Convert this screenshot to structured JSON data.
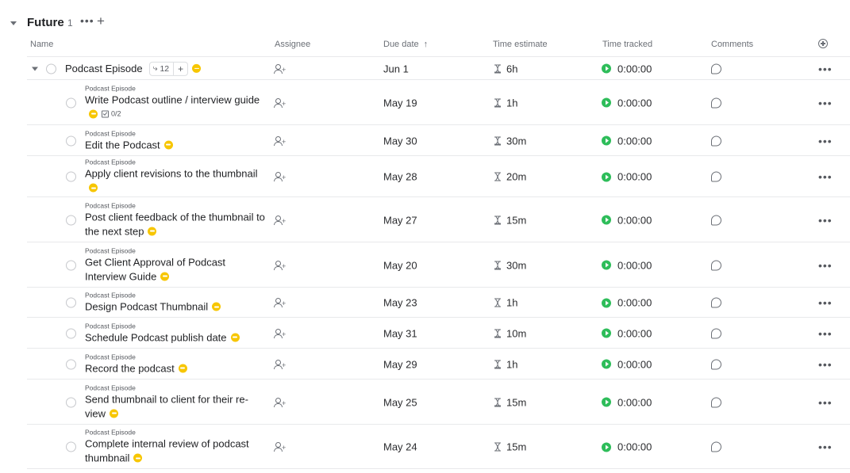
{
  "group": {
    "title": "Future",
    "count": "1",
    "more_icon": "more-horizontal-icon",
    "add_icon": "plus-icon",
    "caret_icon": "caret-down-icon"
  },
  "columns": {
    "name": "Name",
    "assignee": "Assignee",
    "due_date": "Due date",
    "sort_icon": "arrow-up-icon",
    "time_estimate": "Time estimate",
    "time_tracked": "Time tracked",
    "comments": "Comments",
    "add_column_icon": "plus-circle-icon"
  },
  "parent_task": {
    "title": "Podcast Episode",
    "subtask_count": "12",
    "due": "Jun 1",
    "estimate": "6h",
    "tracked": "0:00:00",
    "priority_color": "#f7c600"
  },
  "subtasks": [
    {
      "parent": "Podcast Episode",
      "title": "Write Podcast outline / interview guide",
      "checklist": "0/2",
      "due": "May 19",
      "estimate": "1h",
      "tracked": "0:00:00"
    },
    {
      "parent": "Podcast Episode",
      "title": "Edit the Podcast",
      "due": "May 30",
      "estimate": "30m",
      "tracked": "0:00:00"
    },
    {
      "parent": "Podcast Episode",
      "title": "Apply client revisions to the thumbnail",
      "due": "May 28",
      "estimate": "20m",
      "tracked": "0:00:00"
    },
    {
      "parent": "Podcast Episode",
      "title": "Post client feedback of the thumbnail to the next step",
      "due": "May 27",
      "estimate": "15m",
      "tracked": "0:00:00"
    },
    {
      "parent": "Podcast Episode",
      "title": "Get Client Approval of Podcast Interview Guide",
      "due": "May 20",
      "estimate": "30m",
      "tracked": "0:00:00"
    },
    {
      "parent": "Podcast Episode",
      "title": "Design Podcast Thumbnail",
      "due": "May 23",
      "estimate": "1h",
      "tracked": "0:00:00"
    },
    {
      "parent": "Podcast Episode",
      "title": "Schedule Podcast publish date",
      "due": "May 31",
      "estimate": "10m",
      "tracked": "0:00:00"
    },
    {
      "parent": "Podcast Episode",
      "title": "Record the podcast",
      "due": "May 29",
      "estimate": "1h",
      "tracked": "0:00:00"
    },
    {
      "parent": "Podcast Episode",
      "title": "Send thumbnail to client for their re-view",
      "due": "May 25",
      "estimate": "15m",
      "tracked": "0:00:00"
    },
    {
      "parent": "Podcast Episode",
      "title": "Complete internal review of podcast thumbnail",
      "due": "May 24",
      "estimate": "15m",
      "tracked": "0:00:00"
    }
  ],
  "colors": {
    "priority": "#f7c600",
    "play": "#2ebd5a",
    "divider": "#e8e9eb"
  }
}
